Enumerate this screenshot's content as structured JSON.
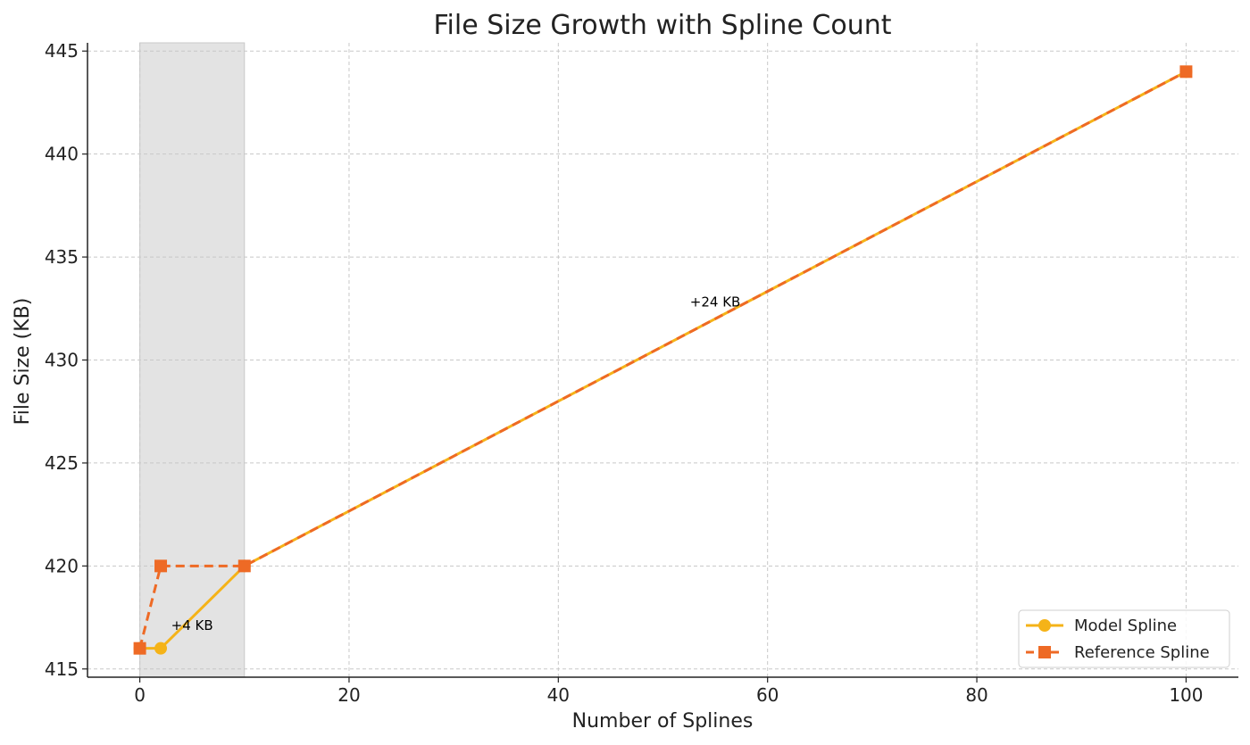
{
  "chart_data": {
    "type": "line",
    "title": "File Size Growth with Spline Count",
    "xlabel": "Number of Splines",
    "ylabel": "File Size (KB)",
    "xlim": [
      -5,
      105
    ],
    "ylim": [
      414.6,
      445.4
    ],
    "xticks": [
      0,
      20,
      40,
      60,
      80,
      100
    ],
    "yticks": [
      415,
      420,
      425,
      430,
      435,
      440,
      445
    ],
    "grid": true,
    "legend_position": "lower-right",
    "highlight_region": {
      "x": [
        0,
        10
      ],
      "color": "#e3e3e3"
    },
    "series": [
      {
        "name": "Model Spline",
        "color": "#f5b318",
        "marker": "circle",
        "line_style": "solid",
        "x": [
          0,
          2,
          10,
          100
        ],
        "y": [
          416,
          416,
          420,
          444
        ]
      },
      {
        "name": "Reference Spline",
        "color": "#ee6a25",
        "marker": "square",
        "line_style": "dashed",
        "x": [
          0,
          2,
          10,
          100
        ],
        "y": [
          416,
          420,
          420,
          444
        ]
      }
    ],
    "annotations": [
      {
        "text": "+4 KB",
        "x": 5,
        "y": 416.9
      },
      {
        "text": "+24 KB",
        "x": 55,
        "y": 432.6
      }
    ]
  }
}
